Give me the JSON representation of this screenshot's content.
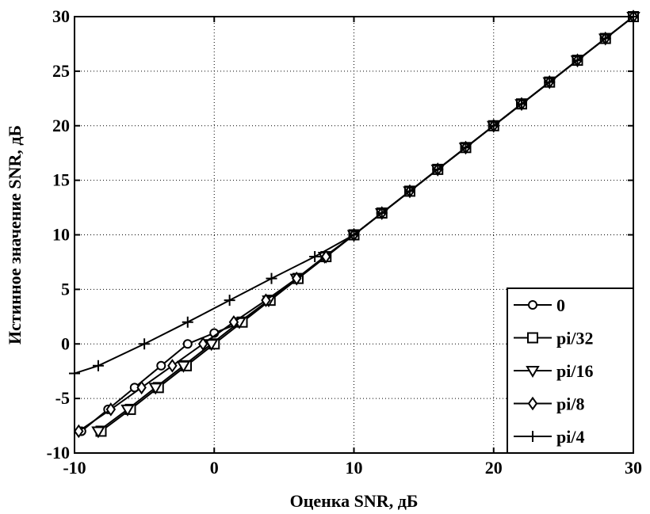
{
  "chart_data": {
    "type": "line",
    "xlabel": "Оценка SNR, дБ",
    "ylabel": "Истинное значение SNR, дБ",
    "xlim": [
      -10,
      30
    ],
    "ylim": [
      -10,
      30
    ],
    "xticks": [
      -10,
      0,
      10,
      20,
      30
    ],
    "yticks": [
      -10,
      -5,
      0,
      5,
      10,
      15,
      20,
      25,
      30
    ],
    "grid": true,
    "legend_position": "bottom-right",
    "series": [
      {
        "name": "0",
        "marker": "circle",
        "x": [
          -9.5,
          -7.6,
          -5.7,
          -3.8,
          -1.9,
          0,
          2,
          4,
          6,
          8,
          10,
          12,
          14,
          16,
          18,
          20,
          22,
          24,
          26,
          28,
          30
        ],
        "y": [
          -8,
          -6,
          -4,
          -2,
          0,
          1,
          2,
          4,
          6,
          8,
          10,
          12,
          14,
          16,
          18,
          20,
          22,
          24,
          26,
          28,
          30
        ]
      },
      {
        "name": "pi/32",
        "marker": "square",
        "x": [
          -8.1,
          -6,
          -4,
          -2,
          0,
          2,
          4,
          6,
          8,
          10,
          12,
          14,
          16,
          18,
          20,
          22,
          24,
          26,
          28,
          30
        ],
        "y": [
          -8,
          -6,
          -4,
          -2,
          0,
          2,
          4,
          6,
          8,
          10,
          12,
          14,
          16,
          18,
          20,
          22,
          24,
          26,
          28,
          30
        ]
      },
      {
        "name": "pi/16",
        "marker": "triangle-down",
        "x": [
          -8.3,
          -6.2,
          -4.2,
          -2.2,
          -0.2,
          1.8,
          3.9,
          5.9,
          7.9,
          10,
          12,
          14,
          16,
          18,
          20,
          22,
          24,
          26,
          28,
          30
        ],
        "y": [
          -8,
          -6,
          -4,
          -2,
          0,
          2,
          4,
          6,
          8,
          10,
          12,
          14,
          16,
          18,
          20,
          22,
          24,
          26,
          28,
          30
        ]
      },
      {
        "name": "pi/8",
        "marker": "diamond",
        "x": [
          -9.7,
          -7.4,
          -5.2,
          -3,
          -0.8,
          1.4,
          3.7,
          5.9,
          8,
          10,
          12,
          14,
          16,
          18,
          20,
          22,
          24,
          26,
          28,
          30
        ],
        "y": [
          -8,
          -6,
          -4,
          -2,
          0,
          2,
          4,
          6,
          8,
          10,
          12,
          14,
          16,
          18,
          20,
          22,
          24,
          26,
          28,
          30
        ]
      },
      {
        "name": "pi/4",
        "marker": "plus",
        "x": [
          -10,
          -8.3,
          -5,
          -1.9,
          1.1,
          4.1,
          7.2,
          10,
          12,
          14,
          16,
          18,
          20,
          22,
          24,
          26,
          28,
          30
        ],
        "y": [
          -2.7,
          -2,
          0,
          2,
          4,
          6,
          8,
          10,
          12,
          14,
          16,
          18,
          20,
          22,
          24,
          26,
          28,
          30
        ]
      }
    ]
  }
}
